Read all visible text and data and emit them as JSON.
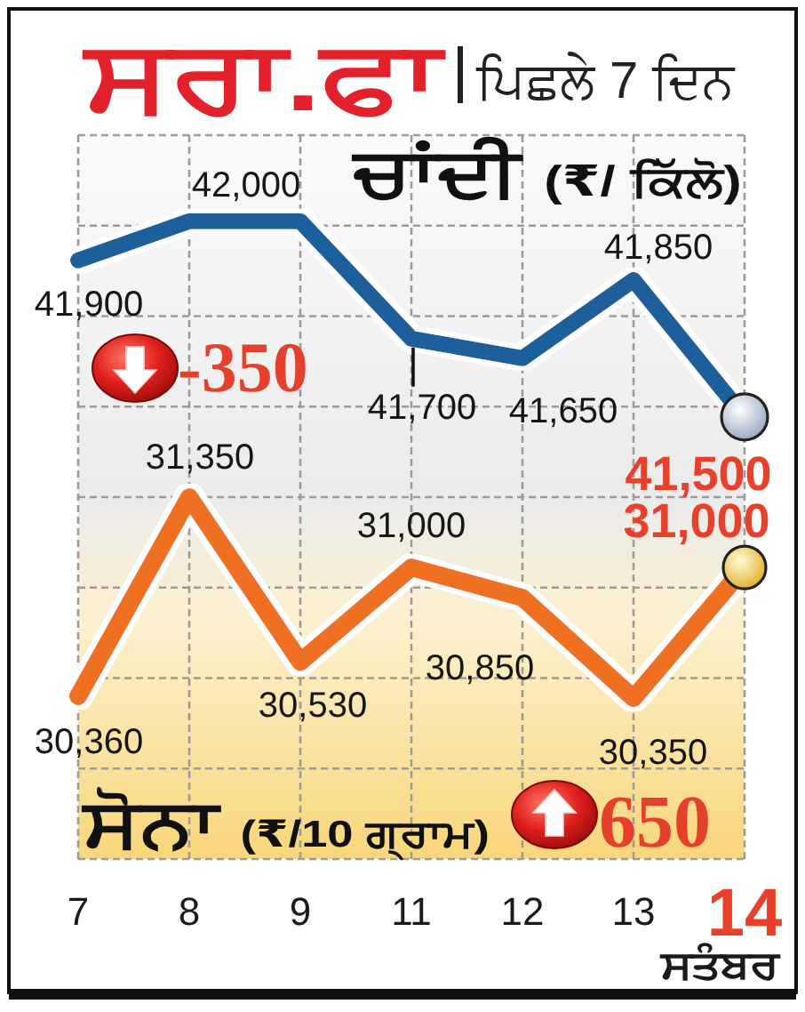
{
  "chart_data": {
    "type": "line",
    "title": "ਸਰਾ.ਫਾ",
    "subtitle": "ਪਿਛਲੇ 7 ਦਿਨ",
    "xlabel": "ਸਤੰਬਰ",
    "categories": [
      "7",
      "8",
      "9",
      "11",
      "12",
      "13",
      "14"
    ],
    "series": [
      {
        "name": "ਚਾਂਦੀ (₹/ ਕਿੱਲੋ)",
        "color": "#1f5f9b",
        "axis": "y2",
        "values": [
          41900,
          42000,
          42000,
          41700,
          41650,
          41850,
          41500
        ],
        "value_labels": [
          "41,900",
          "42,000",
          null,
          "41,700",
          "41,650",
          "41,850",
          "41,500"
        ]
      },
      {
        "name": "ਸੋਨਾ (₹/10 ਗ੍ਰਾਮ)",
        "color": "#f07022",
        "values": [
          30360,
          31350,
          30530,
          31000,
          30850,
          30350,
          31000
        ],
        "value_labels": [
          "30,360",
          "31,350",
          "30,530",
          "31,000",
          "30,850",
          "30,350",
          "31,000"
        ]
      }
    ],
    "ylim": [
      29550,
      33150
    ],
    "yticks": [
      {
        "value": 29550,
        "label": null
      },
      {
        "value": 30000,
        "label": null
      },
      {
        "value": 30450,
        "label": null
      },
      {
        "value": 30900,
        "label": null
      },
      {
        "value": 31350,
        "label": null
      },
      {
        "value": 31800,
        "label": null
      },
      {
        "value": 32250,
        "label": null
      },
      {
        "value": 32700,
        "label": null
      },
      {
        "value": 33150,
        "label": null
      }
    ],
    "y2lim": [
      40370,
      42220
    ],
    "annotations": [
      "-350",
      "650"
    ],
    "grid": true,
    "tick_labels": "x"
  }
}
